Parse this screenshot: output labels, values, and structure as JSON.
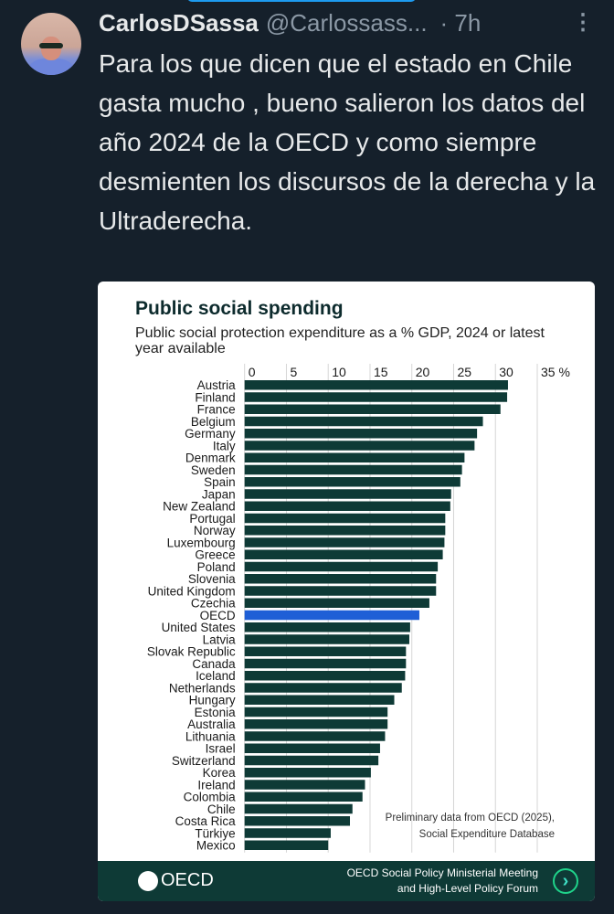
{
  "tweet": {
    "display_name": "CarlosDSassa",
    "handle": "@Carlossass...",
    "time": "· 7h",
    "more_icon": "⋮",
    "text": "Para los que dicen que el estado en Chile gasta mucho , bueno salieron los datos del año 2024 de la OECD y como siempre desmienten los discursos de la  derecha y la Ultraderecha."
  },
  "colors": {
    "background": "#15202b",
    "bar": "#0e3a36",
    "highlight": "#1f5fd6"
  },
  "image_card": {
    "source_note_line1": "Preliminary data from OECD (2025),",
    "source_note_line2": "Social Expenditure Database",
    "footer_logo": "OECD",
    "footer_line1": "OECD Social Policy Ministerial Meeting",
    "footer_line2": "and High-Level Policy Forum"
  },
  "chart_data": {
    "type": "bar",
    "orientation": "horizontal",
    "title": "Public social spending",
    "subtitle": "Public social protection expenditure as a % GDP, 2024 or latest year available",
    "xlim": [
      0,
      35
    ],
    "ticks": [
      "0",
      "5",
      "10",
      "15",
      "20",
      "25",
      "30",
      "35 %"
    ],
    "grid": true,
    "highlight": "OECD",
    "categories": [
      "Austria",
      "Finland",
      "France",
      "Belgium",
      "Germany",
      "Italy",
      "Denmark",
      "Sweden",
      "Spain",
      "Japan",
      "New Zealand",
      "Portugal",
      "Norway",
      "Luxembourg",
      "Greece",
      "Poland",
      "Slovenia",
      "United Kingdom",
      "Czechia",
      "OECD",
      "United States",
      "Latvia",
      "Slovak Republic",
      "Canada",
      "Iceland",
      "Netherlands",
      "Hungary",
      "Estonia",
      "Australia",
      "Lithuania",
      "Israel",
      "Switzerland",
      "Korea",
      "Ireland",
      "Colombia",
      "Chile",
      "Costa Rica",
      "Türkiye",
      "Mexico"
    ],
    "values": [
      31.5,
      31.4,
      30.6,
      28.5,
      27.8,
      27.5,
      26.3,
      26.0,
      25.8,
      24.7,
      24.6,
      24.0,
      24.0,
      23.9,
      23.7,
      23.1,
      22.9,
      22.9,
      22.1,
      20.9,
      19.8,
      19.7,
      19.3,
      19.3,
      19.2,
      18.8,
      17.9,
      17.1,
      17.1,
      16.8,
      16.2,
      16.0,
      15.1,
      14.4,
      14.1,
      12.9,
      12.6,
      10.3,
      10.0
    ]
  }
}
